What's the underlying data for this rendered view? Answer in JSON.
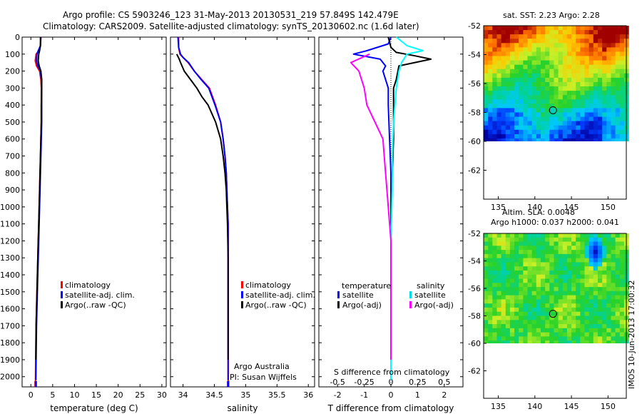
{
  "header": {
    "title_line1": "Argo profile: CS 5903246_123 31-May-2013 20130531_219 57.849S 142.479E",
    "title_line2": "Climatology: CARS2009. Satellite-adjusted climatology: synTS_20130602.nc (1.6d later)"
  },
  "chart_data": [
    {
      "type": "line",
      "panel": "temperature",
      "xlabel": "temperature (deg C)",
      "xlim": [
        -2,
        31
      ],
      "ylim": [
        2060,
        0
      ],
      "y_reversed": true,
      "xticks": [
        0,
        5,
        10,
        15,
        20,
        25,
        30
      ],
      "yticks": [
        0,
        100,
        200,
        300,
        400,
        500,
        600,
        700,
        800,
        900,
        1000,
        1100,
        1200,
        1300,
        1400,
        1500,
        1600,
        1700,
        1800,
        1900,
        2000
      ],
      "legend": {
        "placement": "lower-center",
        "entries": [
          "climatology",
          "satellite-adj. clim.",
          "Argo(..raw -QC)"
        ]
      },
      "series": [
        {
          "name": "climatology",
          "color": "#ff0000",
          "x": [
            2.3,
            2.2,
            1.9,
            1.2,
            1.0,
            1.3,
            2.0,
            2.3,
            2.4,
            2.4,
            2.4,
            2.3,
            2.2,
            2.1,
            2.0,
            1.9,
            1.8,
            1.7,
            1.6,
            1.5,
            1.4,
            1.3,
            1.2,
            1.1,
            1.05
          ],
          "y": [
            0,
            50,
            80,
            100,
            140,
            170,
            200,
            250,
            300,
            400,
            500,
            600,
            700,
            800,
            900,
            1000,
            1100,
            1200,
            1300,
            1400,
            1500,
            1600,
            1700,
            1900,
            2040
          ]
        },
        {
          "name": "satellite-adj. clim.",
          "color": "#0000ff",
          "x": [
            2.3,
            2.2,
            1.7,
            1.4,
            1.3,
            1.6,
            2.2,
            2.4,
            2.5,
            2.5,
            2.5,
            2.4,
            2.3,
            2.2,
            2.1,
            2.0,
            1.9,
            1.8,
            1.7,
            1.6,
            1.5,
            1.4,
            1.3,
            1.2,
            1.15
          ],
          "y": [
            0,
            50,
            80,
            100,
            140,
            170,
            200,
            250,
            300,
            400,
            500,
            600,
            700,
            800,
            900,
            1000,
            1100,
            1200,
            1300,
            1400,
            1500,
            1600,
            1700,
            1900,
            2020
          ]
        },
        {
          "name": "Argo(..raw -QC)",
          "color": "#000000",
          "x": [
            2.2,
            2.2,
            2.0,
            1.8,
            1.7,
            1.9,
            2.3,
            2.5,
            2.5,
            2.4,
            2.4,
            2.3,
            2.2,
            2.1,
            2.0,
            1.9,
            1.8,
            1.7,
            1.6,
            1.5,
            1.4,
            1.3,
            1.2,
            1.15
          ],
          "y": [
            0,
            50,
            80,
            100,
            140,
            170,
            200,
            250,
            300,
            400,
            500,
            600,
            700,
            800,
            900,
            1000,
            1100,
            1200,
            1300,
            1400,
            1500,
            1600,
            1700,
            1900
          ]
        }
      ]
    },
    {
      "type": "line",
      "panel": "salinity",
      "xlabel": "salinity",
      "xlim": [
        33.8,
        36.1
      ],
      "ylim": [
        2060,
        0
      ],
      "y_reversed": true,
      "xticks": [
        34,
        34.5,
        35,
        35.5,
        36
      ],
      "legend": {
        "placement": "lower-right",
        "entries": [
          "climatology",
          "satellite-adj. clim.",
          "Argo(..raw -QC)"
        ]
      },
      "annotations": [
        "Argo Australia",
        "PI: Susan Wijffels"
      ],
      "series": [
        {
          "name": "climatology",
          "color": "#ff0000",
          "x": [
            33.93,
            33.93,
            33.95,
            34.0,
            34.08,
            34.18,
            34.3,
            34.42,
            34.52,
            34.6,
            34.64,
            34.67,
            34.69,
            34.7,
            34.71,
            34.72,
            34.72,
            34.72,
            34.72,
            34.72,
            34.72
          ],
          "y": [
            0,
            60,
            100,
            120,
            150,
            200,
            250,
            300,
            400,
            500,
            600,
            700,
            800,
            900,
            1000,
            1100,
            1300,
            1500,
            1700,
            1900,
            2040
          ]
        },
        {
          "name": "satellite-adj. clim.",
          "color": "#0000ff",
          "x": [
            33.92,
            33.93,
            33.96,
            34.0,
            34.09,
            34.18,
            34.29,
            34.41,
            34.51,
            34.6,
            34.64,
            34.67,
            34.69,
            34.7,
            34.71,
            34.72,
            34.72,
            34.72,
            34.72,
            34.72,
            34.72
          ],
          "y": [
            0,
            60,
            100,
            120,
            150,
            200,
            250,
            300,
            400,
            500,
            600,
            700,
            800,
            900,
            1000,
            1100,
            1300,
            1500,
            1700,
            1900,
            2020
          ]
        },
        {
          "name": "Argo(..raw -QC)",
          "color": "#000000",
          "x": [
            33.9,
            33.94,
            33.96,
            34.02,
            34.12,
            34.22,
            34.3,
            34.4,
            34.52,
            34.6,
            34.64,
            34.67,
            34.69,
            34.7,
            34.71,
            34.72,
            34.72,
            34.72,
            34.72
          ],
          "y": [
            100,
            130,
            150,
            200,
            250,
            300,
            350,
            400,
            500,
            600,
            700,
            800,
            900,
            1000,
            1100,
            1300,
            1500,
            1700,
            1900
          ]
        }
      ]
    },
    {
      "type": "line",
      "panel": "difference",
      "xlabel": "T difference from climatology",
      "xlabel_top": "S difference from climatology",
      "xlim": [
        -2.7,
        2.7
      ],
      "ylim": [
        2060,
        0
      ],
      "y_reversed": true,
      "xticks": [
        -2,
        -1,
        0,
        1,
        2
      ],
      "xticks_s": [
        "-0.5",
        "-0.25",
        "0",
        "0.25",
        "0.5"
      ],
      "legend": {
        "placement": "lower-center",
        "groups": [
          {
            "title": "temperature",
            "entries": [
              "satellite",
              "Argo(-adj)"
            ]
          },
          {
            "title": "salinity",
            "entries": [
              "satellite",
              "Argo(-adj)"
            ]
          }
        ]
      },
      "series": [
        {
          "name": "satellite",
          "group": "temperature",
          "color": "#0000ff",
          "x": [
            0.0,
            -0.1,
            -0.9,
            -1.4,
            -0.4,
            -0.2,
            -0.3,
            -0.1,
            -0.1,
            -0.05,
            0.0,
            0.0,
            0.0,
            0.0,
            0.0
          ],
          "y": [
            0,
            40,
            80,
            100,
            130,
            170,
            200,
            300,
            400,
            600,
            800,
            1000,
            1400,
            1800,
            2020
          ]
        },
        {
          "name": "Argo(-adj)",
          "group": "temperature",
          "color": "#000000",
          "x": [
            -0.1,
            0.0,
            0.2,
            0.9,
            1.5,
            0.3,
            0.2,
            0.1,
            0.1,
            0.1,
            0.05,
            0.0,
            0.0,
            0.0
          ],
          "y": [
            0,
            60,
            90,
            110,
            130,
            170,
            250,
            300,
            400,
            600,
            800,
            1200,
            1600,
            1900
          ]
        },
        {
          "name": "satellite",
          "group": "salinity",
          "color": "#00ffff",
          "x": [
            0.2,
            0.6,
            1.2,
            0.6,
            0.4,
            0.3,
            0.2,
            0.15,
            0.1,
            0.05,
            0.05,
            0.0,
            0.0,
            0.0
          ],
          "y": [
            0,
            50,
            80,
            100,
            150,
            200,
            300,
            400,
            500,
            700,
            900,
            1200,
            1600,
            2020
          ]
        },
        {
          "name": "Argo(-adj)",
          "group": "salinity",
          "color": "#ff00ff",
          "x": [
            -0.8,
            -1.5,
            -1.2,
            -1.0,
            -0.9,
            -0.6,
            -0.3,
            -0.2,
            -0.1,
            0.0,
            0.0,
            0.0
          ],
          "y": [
            100,
            150,
            200,
            300,
            400,
            500,
            600,
            800,
            1000,
            1200,
            1600,
            1900
          ]
        }
      ]
    },
    {
      "type": "heatmap",
      "panel": "sst-map",
      "title": "sat. SST: 2.23  Argo: 2.28",
      "xlim": [
        133,
        152.5
      ],
      "ylim": [
        -64,
        -52
      ],
      "xticks": [
        135,
        140,
        145,
        150
      ],
      "yticks": [
        -52,
        -54,
        -56,
        -58,
        -60,
        -62
      ],
      "marker": {
        "lon": 142.48,
        "lat": -57.85
      },
      "land_or_missing_below_lat": -60
    },
    {
      "type": "heatmap",
      "panel": "sla-map",
      "title_line1": "Altim. SLA: 0.0048",
      "title_line2": "Argo h1000: 0.037 h2000: 0.041",
      "xlim": [
        133,
        152.5
      ],
      "ylim": [
        -64,
        -52
      ],
      "xticks": [
        135,
        140,
        145,
        150
      ],
      "yticks": [
        -52,
        -54,
        -56,
        -58,
        -60,
        -62
      ],
      "marker": {
        "lon": 142.48,
        "lat": -57.85
      },
      "missing_below_lat": -60
    }
  ],
  "footer": {
    "stamp": "IMOS 10-Jun-2013 17:00:32"
  }
}
